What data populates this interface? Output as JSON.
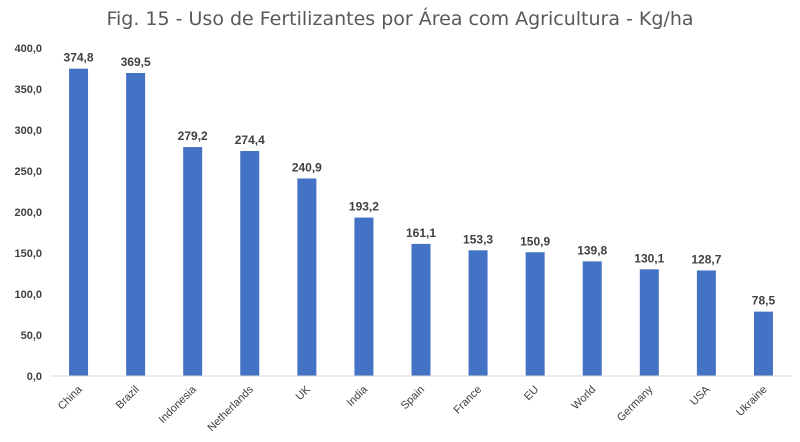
{
  "chart_data": {
    "type": "bar",
    "title": "Fig. 15 - Uso de Fertilizantes por Área com Agricultura - Kg/ha",
    "categories": [
      "China",
      "Brazil",
      "Indonesia",
      "Netherlands",
      "UK",
      "India",
      "Spain",
      "France",
      "EU",
      "World",
      "Germany",
      "USA",
      "Ukraine"
    ],
    "values": [
      374.8,
      369.5,
      279.2,
      274.4,
      240.9,
      193.2,
      161.1,
      153.3,
      150.9,
      139.8,
      130.1,
      128.7,
      78.5
    ],
    "data_labels": [
      "374,8",
      "369,5",
      "279,2",
      "274,4",
      "240,9",
      "193,2",
      "161,1",
      "153,3",
      "150,9",
      "139,8",
      "130,1",
      "128,7",
      "78,5"
    ],
    "y_ticks": [
      0,
      50,
      100,
      150,
      200,
      250,
      300,
      350,
      400
    ],
    "y_tick_labels": [
      "0,0",
      "50,0",
      "100,0",
      "150,0",
      "200,0",
      "250,0",
      "300,0",
      "350,0",
      "400,0"
    ],
    "ylim": [
      0,
      400
    ],
    "xlabel": "",
    "ylabel": "",
    "grid": false,
    "legend": "none",
    "bar_color": "#4472C4"
  }
}
